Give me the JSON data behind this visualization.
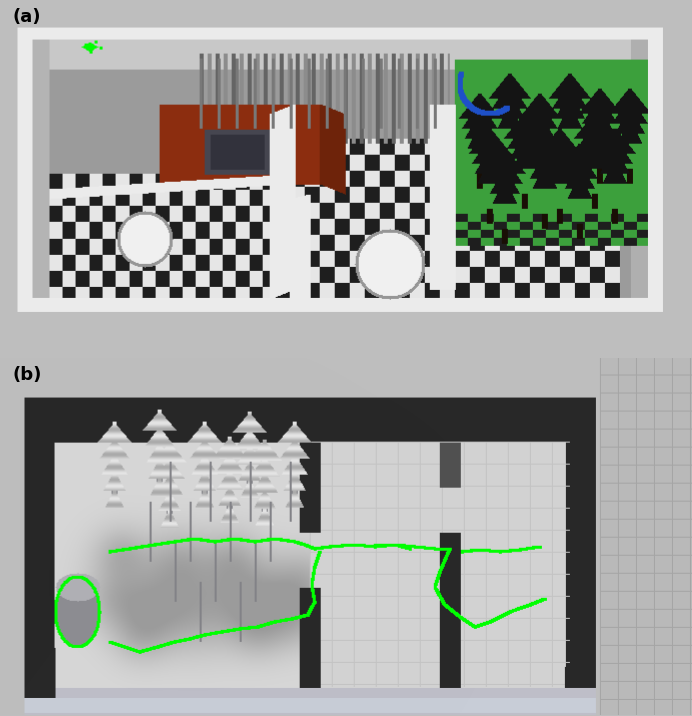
{
  "figure_width": 6.92,
  "figure_height": 7.16,
  "dpi": 100,
  "bg_color": "#bebebe",
  "panel_a_label": "(a)",
  "panel_b_label": "(b)",
  "label_fontsize": 13,
  "label_color": "black",
  "label_weight": "bold",
  "separator_color": "#bebebe",
  "gray_bg": 190,
  "dark_wall": 40,
  "light_wall": 220,
  "floor_light": 210,
  "floor_dark": 170,
  "green_grass": [
    60,
    160,
    60
  ],
  "red_building": [
    140,
    45,
    15
  ],
  "tree_dark": 20,
  "blue_arc": [
    30,
    80,
    200
  ],
  "green_traj": [
    0,
    255,
    0
  ],
  "checker_dark": 30,
  "checker_light": 230
}
